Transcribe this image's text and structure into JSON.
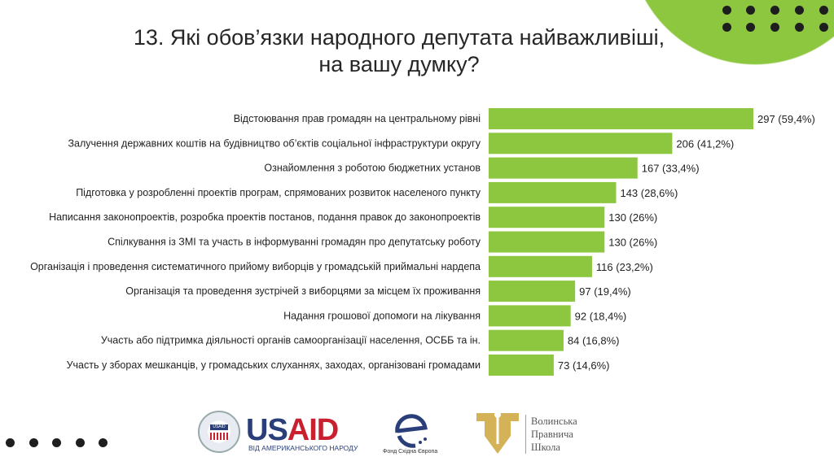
{
  "title_line1": "13. Які обов’язки народного депутата найважливіші,",
  "title_line2": "на вашу думку?",
  "colors": {
    "bar": "#8dc63f",
    "decoration": "#8dc63f",
    "dots": "#1e1e1e",
    "usaid_blue": "#2a3f7a",
    "usaid_red": "#c8202f",
    "school_gold": "#d4b257"
  },
  "chart_data": {
    "type": "bar",
    "orientation": "horizontal",
    "categories": [
      "Відстоювання прав громадян на центральному рівні",
      "Залучення державних коштів на будівництво об’єктів соціальної інфраструктури округу",
      "Ознайомлення з роботою бюджетних установ",
      "Підготовка у розробленні проектів програм, спрямованих розвиток населеного пункту",
      "Написання законопроектів, розробка проектів постанов, подання правок до законопроектів",
      "Спілкування із ЗМІ та участь в інформуванні громадян про депутатську роботу",
      "Організація і проведення систематичного прийому виборців у громадській приймальні нардепа",
      "Організація та проведення зустрічей з виборцями за місцем їх проживання",
      "Надання грошової допомоги на лікування",
      "Участь або підтримка діяльності органів самоорганізації населення, ОСББ та ін.",
      "Участь у зборах мешканців, у громадських слуханнях, заходах, організовані громадами"
    ],
    "values": [
      297,
      206,
      167,
      143,
      130,
      130,
      116,
      97,
      92,
      84,
      73
    ],
    "data_labels": [
      "297 (59,4%)",
      "206 (41,2%)",
      "167 (33,4%)",
      "143 (28,6%)",
      "130 (26%)",
      "130 (26%)",
      "116 (23,2%)",
      "97 (19,4%)",
      "92 (18,4%)",
      "84 (16,8%)",
      "73 (14,6%)"
    ],
    "grid": false,
    "legend": "none"
  },
  "logos": {
    "usaid": "USAID",
    "usaid_seal": "USAID",
    "usaid_subtitle": "ВІД АМЕРИКАНСЬКОГО НАРОДУ",
    "fund": "Фонд Східна Європа",
    "school": [
      "Волинська",
      "Правнича",
      "Школа"
    ]
  }
}
